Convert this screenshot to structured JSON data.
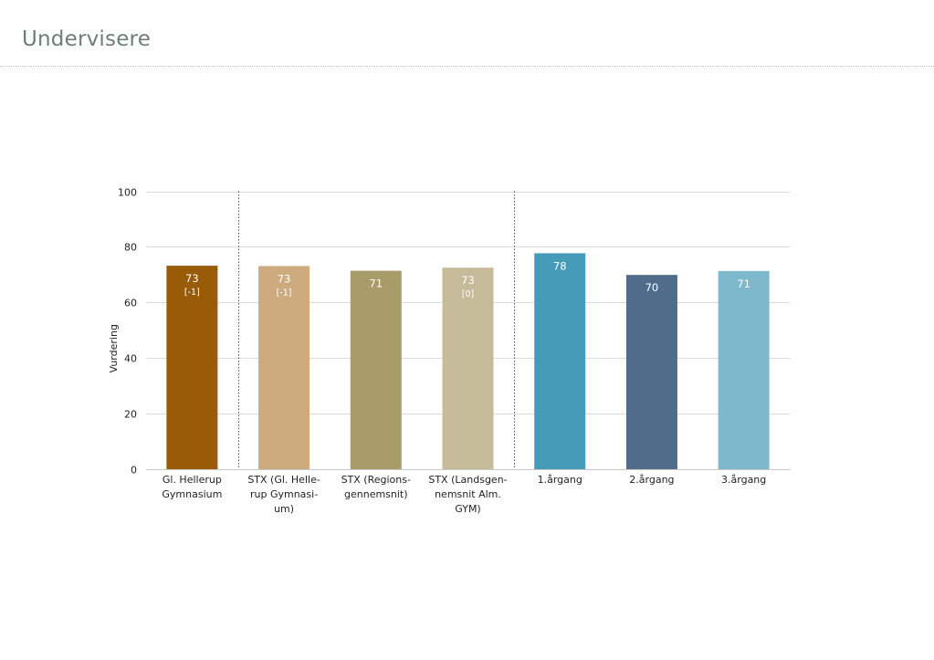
{
  "header": {
    "title": "Undervisere"
  },
  "chart_data": {
    "type": "bar",
    "title": "",
    "xlabel": "",
    "ylabel": "Vurdering",
    "ylim": [
      0,
      100
    ],
    "yticks": [
      0,
      20,
      40,
      60,
      80,
      100
    ],
    "grid": true,
    "categories": [
      [
        "Gl. Hellerup",
        "Gymnasium"
      ],
      [
        "STX (Gl. Helle-",
        "rup Gymnasi-",
        "um)"
      ],
      [
        "STX (Regions-",
        "gennemsnit)"
      ],
      [
        "STX (Landsgen-",
        "nemsnit Alm.",
        "GYM)"
      ],
      [
        "1.årgang"
      ],
      [
        "2.årgang"
      ],
      [
        "3.årgang"
      ]
    ],
    "values": [
      73,
      73,
      71,
      73,
      78,
      70,
      71
    ],
    "exact_values": [
      73.2,
      73.1,
      71.4,
      72.5,
      77.7,
      69.9,
      71.3
    ],
    "value_labels": [
      "73",
      "73",
      "71",
      "73",
      "78",
      "70",
      "71"
    ],
    "delta_labels": [
      "[-1]",
      "[-1]",
      "",
      "[0]",
      "",
      "",
      ""
    ],
    "colors": [
      "#9a5b07",
      "#cdab7f",
      "#a89d6a",
      "#c6bb98",
      "#469bb8",
      "#516c89",
      "#7db8cc"
    ],
    "label_colors": [
      "#ffffff",
      "#ffffff",
      "#ffffff",
      "#ffffff",
      "#ffffff",
      "#ffffff",
      "#ffffff"
    ],
    "group_separators_after": [
      0,
      3
    ]
  }
}
